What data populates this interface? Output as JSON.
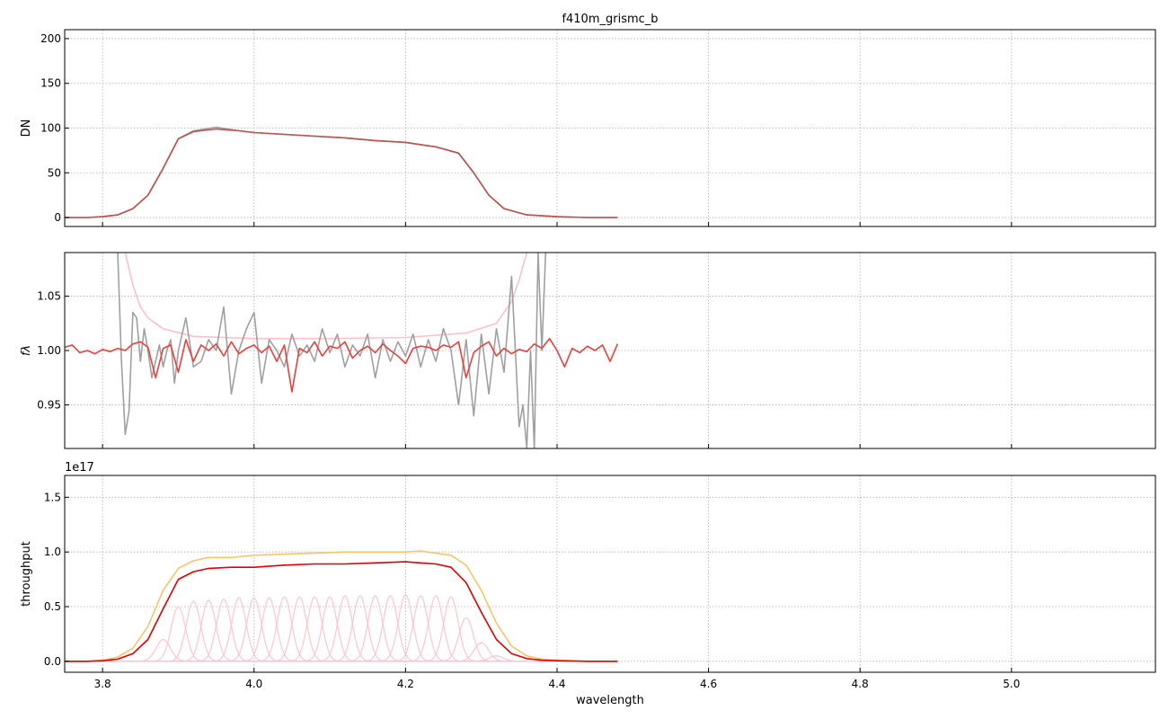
{
  "figure": {
    "title": "f410m_grismc_b",
    "xlabel": "wavelength"
  },
  "chart_data": [
    {
      "type": "line",
      "panel": "counts",
      "ylabel": "DN",
      "xlim": [
        3.75,
        5.19
      ],
      "ylim": [
        -10,
        210
      ],
      "xticks": [
        3.8,
        4.0,
        4.2,
        4.4,
        4.6,
        4.8,
        5.0
      ],
      "xtick_labels": [
        "3.8",
        "4.0",
        "4.2",
        "4.4",
        "4.6",
        "4.8",
        "5.0"
      ],
      "xtick_labels_visible": false,
      "yticks": [
        0,
        50,
        100,
        150,
        200
      ],
      "ytick_labels": [
        "0",
        "50",
        "100",
        "150",
        "200"
      ],
      "grid": true,
      "series": [
        {
          "color": "#a0a0a0",
          "x": [
            3.75,
            3.78,
            3.8,
            3.82,
            3.84,
            3.86,
            3.88,
            3.9,
            3.92,
            3.95,
            3.98,
            4.0,
            4.04,
            4.08,
            4.12,
            4.16,
            4.2,
            4.24,
            4.27,
            4.29,
            4.31,
            4.33,
            4.36,
            4.4,
            4.44,
            4.48
          ],
          "y": [
            0,
            0,
            1,
            3,
            10,
            25,
            55,
            88,
            97,
            101,
            97,
            95,
            93,
            91,
            89,
            86,
            84,
            79,
            72,
            50,
            25,
            10,
            3,
            1,
            0,
            0
          ]
        },
        {
          "color": "#c0504d",
          "x": [
            3.75,
            3.78,
            3.8,
            3.82,
            3.84,
            3.86,
            3.88,
            3.9,
            3.92,
            3.95,
            3.98,
            4.0,
            4.04,
            4.08,
            4.12,
            4.16,
            4.2,
            4.24,
            4.27,
            4.29,
            4.31,
            4.33,
            4.36,
            4.4,
            4.44,
            4.48
          ],
          "y": [
            0,
            0,
            1,
            3,
            10,
            25,
            55,
            88,
            96,
            99,
            97,
            95,
            93,
            91,
            89,
            86,
            84,
            79,
            72,
            50,
            25,
            10,
            3,
            1,
            0,
            0
          ]
        }
      ]
    },
    {
      "type": "line",
      "panel": "ratio",
      "ylabel": "fλ",
      "xlim": [
        3.75,
        5.19
      ],
      "ylim": [
        0.91,
        1.09
      ],
      "xticks": [
        3.8,
        4.0,
        4.2,
        4.4,
        4.6,
        4.8,
        5.0
      ],
      "xtick_labels": [
        "3.8",
        "4.0",
        "4.2",
        "4.4",
        "4.6",
        "4.8",
        "5.0"
      ],
      "xtick_labels_visible": false,
      "yticks": [
        0.95,
        1.0,
        1.05
      ],
      "ytick_labels": [
        "0.95",
        "1.00",
        "1.05"
      ],
      "grid": true,
      "series": [
        {
          "color": "#ffc0cb",
          "x": [
            3.83,
            3.84,
            3.85,
            3.86,
            3.88,
            3.92,
            4.0,
            4.1,
            4.2,
            4.28,
            4.32,
            4.34,
            4.35,
            4.36
          ],
          "y": [
            1.09,
            1.06,
            1.04,
            1.03,
            1.02,
            1.013,
            1.011,
            1.011,
            1.012,
            1.016,
            1.025,
            1.045,
            1.065,
            1.09
          ]
        },
        {
          "color": "#a0a0a0",
          "x": [
            3.82,
            3.825,
            3.83,
            3.835,
            3.84,
            3.845,
            3.85,
            3.855,
            3.86,
            3.865,
            3.87,
            3.875,
            3.88,
            3.885,
            3.89,
            3.895,
            3.9,
            3.91,
            3.92,
            3.93,
            3.94,
            3.95,
            3.96,
            3.97,
            3.98,
            3.99,
            4.0,
            4.01,
            4.02,
            4.03,
            4.04,
            4.05,
            4.06,
            4.07,
            4.08,
            4.09,
            4.1,
            4.11,
            4.12,
            4.13,
            4.14,
            4.15,
            4.16,
            4.17,
            4.18,
            4.19,
            4.2,
            4.21,
            4.22,
            4.23,
            4.24,
            4.25,
            4.26,
            4.27,
            4.28,
            4.29,
            4.3,
            4.31,
            4.32,
            4.33,
            4.34,
            4.345,
            4.35,
            4.355,
            4.36,
            4.365,
            4.37,
            4.375,
            4.38,
            4.385
          ],
          "y": [
            1.09,
            0.99,
            0.923,
            0.945,
            1.035,
            1.03,
            0.99,
            1.02,
            1.0,
            0.975,
            0.99,
            1.005,
            0.985,
            1.0,
            1.01,
            0.97,
            1.0,
            1.03,
            0.985,
            0.99,
            1.01,
            1.0,
            1.04,
            0.96,
            1.0,
            1.02,
            1.035,
            0.97,
            1.01,
            1.0,
            0.985,
            1.015,
            0.995,
            1.005,
            0.99,
            1.02,
            0.998,
            1.015,
            0.985,
            1.005,
            0.995,
            1.015,
            0.975,
            1.01,
            0.99,
            1.008,
            0.995,
            1.015,
            0.985,
            1.01,
            0.99,
            1.02,
            1.0,
            0.95,
            1.01,
            0.94,
            1.015,
            0.96,
            1.02,
            0.98,
            1.068,
            1.0,
            0.93,
            0.95,
            0.91,
            1.0,
            0.91,
            1.09,
            1.0,
            1.09
          ]
        },
        {
          "color": "#e8403c",
          "x": [
            3.75,
            3.76,
            3.77,
            3.78,
            3.79,
            3.8,
            3.81,
            3.82,
            3.83,
            3.84,
            3.85,
            3.86,
            3.87,
            3.88,
            3.89,
            3.9,
            3.91,
            3.92,
            3.93,
            3.94,
            3.95,
            3.96,
            3.97,
            3.98,
            3.99,
            4.0,
            4.01,
            4.02,
            4.03,
            4.04,
            4.05,
            4.06,
            4.07,
            4.08,
            4.09,
            4.1,
            4.11,
            4.12,
            4.13,
            4.14,
            4.15,
            4.16,
            4.17,
            4.18,
            4.19,
            4.2,
            4.21,
            4.22,
            4.23,
            4.24,
            4.25,
            4.26,
            4.27,
            4.28,
            4.29,
            4.3,
            4.31,
            4.32,
            4.33,
            4.34,
            4.35,
            4.36,
            4.37,
            4.38,
            4.39,
            4.4,
            4.41,
            4.42,
            4.43,
            4.44,
            4.45,
            4.46,
            4.47,
            4.48
          ],
          "y": [
            1.003,
            1.005,
            0.998,
            1.0,
            0.997,
            1.001,
            0.999,
            1.002,
            1.0,
            1.006,
            1.008,
            1.003,
            0.975,
            1.002,
            1.005,
            0.98,
            1.01,
            0.99,
            1.005,
            1.0,
            1.006,
            0.995,
            1.008,
            0.997,
            1.002,
            1.005,
            0.998,
            1.004,
            0.99,
            1.005,
            0.962,
            1.002,
            0.998,
            1.008,
            0.995,
            1.004,
            1.002,
            1.008,
            0.993,
            1.0,
            1.004,
            0.998,
            1.006,
            1.0,
            0.995,
            0.988,
            1.002,
            1.004,
            1.003,
            1.0,
            1.005,
            1.003,
            1.008,
            0.975,
            0.998,
            1.004,
            1.008,
            0.995,
            1.002,
            0.997,
            1.001,
            0.999,
            1.006,
            1.002,
            1.011,
            1.0,
            0.985,
            1.002,
            0.998,
            1.004,
            1.0,
            1.005,
            0.99,
            1.006
          ]
        }
      ]
    },
    {
      "type": "line",
      "panel": "throughput",
      "ylabel": "throughput",
      "offset_label": "1e17",
      "y_unit_scale": 1e+17,
      "xlim": [
        3.75,
        5.19
      ],
      "ylim": [
        -0.1,
        1.7
      ],
      "xticks": [
        3.8,
        4.0,
        4.2,
        4.4,
        4.6,
        4.8,
        5.0
      ],
      "xtick_labels": [
        "3.8",
        "4.0",
        "4.2",
        "4.4",
        "4.6",
        "4.8",
        "5.0"
      ],
      "xtick_labels_visible": true,
      "yticks": [
        0.0,
        0.5,
        1.0,
        1.5
      ],
      "ytick_labels": [
        "0.0",
        "0.5",
        "1.0",
        "1.5"
      ],
      "grid": true,
      "components": {
        "color": "#ffc0cb",
        "centers": [
          3.88,
          3.9,
          3.92,
          3.94,
          3.96,
          3.98,
          4.0,
          4.02,
          4.04,
          4.06,
          4.08,
          4.1,
          4.12,
          4.14,
          4.16,
          4.18,
          4.2,
          4.22,
          4.24,
          4.26,
          4.28,
          4.3,
          4.32
        ],
        "peaks": [
          0.2,
          0.5,
          0.55,
          0.56,
          0.57,
          0.58,
          0.58,
          0.58,
          0.59,
          0.59,
          0.59,
          0.59,
          0.6,
          0.6,
          0.6,
          0.6,
          0.61,
          0.6,
          0.6,
          0.59,
          0.4,
          0.17,
          0.05
        ],
        "sigma": 0.0095
      },
      "series": [
        {
          "color": "#f7c56a",
          "x": [
            3.75,
            3.78,
            3.8,
            3.82,
            3.84,
            3.86,
            3.88,
            3.9,
            3.92,
            3.94,
            3.97,
            4.0,
            4.04,
            4.08,
            4.12,
            4.16,
            4.2,
            4.22,
            4.24,
            4.26,
            4.28,
            4.3,
            4.32,
            4.34,
            4.36,
            4.38,
            4.4,
            4.44,
            4.48
          ],
          "y": [
            0.0,
            0.0,
            0.01,
            0.04,
            0.12,
            0.32,
            0.65,
            0.85,
            0.92,
            0.95,
            0.95,
            0.97,
            0.98,
            0.99,
            1.0,
            1.0,
            1.0,
            1.01,
            0.99,
            0.97,
            0.88,
            0.65,
            0.35,
            0.14,
            0.05,
            0.02,
            0.01,
            0.0,
            0.0
          ]
        },
        {
          "color": "#e00000",
          "x": [
            3.75,
            3.78,
            3.8,
            3.82,
            3.84,
            3.86,
            3.88,
            3.9,
            3.92,
            3.94,
            3.97,
            4.0,
            4.04,
            4.08,
            4.12,
            4.16,
            4.2,
            4.22,
            4.24,
            4.26,
            4.28,
            4.3,
            4.32,
            4.34,
            4.36,
            4.38,
            4.4,
            4.44,
            4.48
          ],
          "y": [
            0.0,
            0.0,
            0.005,
            0.02,
            0.07,
            0.2,
            0.48,
            0.75,
            0.82,
            0.85,
            0.86,
            0.86,
            0.88,
            0.89,
            0.89,
            0.9,
            0.91,
            0.9,
            0.89,
            0.86,
            0.72,
            0.45,
            0.2,
            0.07,
            0.025,
            0.01,
            0.005,
            0.0,
            0.0
          ]
        }
      ]
    }
  ]
}
